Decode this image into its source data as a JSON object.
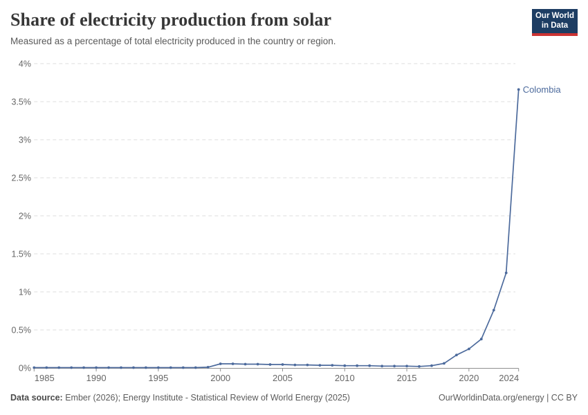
{
  "header": {
    "title": "Share of electricity production from solar",
    "subtitle": "Measured as a percentage of total electricity produced in the country or region."
  },
  "logo": {
    "line1": "Our World",
    "line2": "in Data"
  },
  "chart_data": {
    "type": "line",
    "title": "Share of electricity production from solar",
    "subtitle": "Measured as a percentage of total electricity produced in the country or region.",
    "entity_label": "Colombia",
    "xlim": [
      1985,
      2024
    ],
    "ylim": [
      0,
      4
    ],
    "x_ticks": [
      1985,
      1990,
      1995,
      2000,
      2005,
      2010,
      2015,
      2020,
      2024
    ],
    "y_ticks": [
      0,
      0.5,
      1,
      1.5,
      2,
      2.5,
      3,
      3.5,
      4
    ],
    "y_tick_labels": [
      "0%",
      "0.5%",
      "1%",
      "1.5%",
      "2%",
      "2.5%",
      "3%",
      "3.5%",
      "4%"
    ],
    "grid": "horizontal-dashed",
    "legend": "end-of-line-label",
    "series": [
      {
        "name": "Colombia",
        "x": [
          1985,
          1986,
          1987,
          1988,
          1989,
          1990,
          1991,
          1992,
          1993,
          1994,
          1995,
          1996,
          1997,
          1998,
          1999,
          2000,
          2001,
          2002,
          2003,
          2004,
          2005,
          2006,
          2007,
          2008,
          2009,
          2010,
          2011,
          2012,
          2013,
          2014,
          2015,
          2016,
          2017,
          2018,
          2019,
          2020,
          2021,
          2022,
          2023,
          2024
        ],
        "values": [
          0.005,
          0.005,
          0.005,
          0.005,
          0.005,
          0.005,
          0.005,
          0.005,
          0.005,
          0.005,
          0.005,
          0.005,
          0.005,
          0.005,
          0.01,
          0.055,
          0.055,
          0.05,
          0.05,
          0.045,
          0.045,
          0.04,
          0.04,
          0.035,
          0.035,
          0.03,
          0.03,
          0.03,
          0.025,
          0.025,
          0.025,
          0.02,
          0.03,
          0.06,
          0.17,
          0.25,
          0.38,
          0.76,
          1.25,
          3.66
        ]
      }
    ],
    "colors": {
      "line": "#4c6a9c",
      "grid": "#dcdcdc",
      "axis": "#8f8f8f",
      "tick_text": "#666666",
      "entity_label": "#4c6a9c"
    }
  },
  "footer": {
    "source_label": "Data source:",
    "source_text": " Ember (2026); Energy Institute - Statistical Review of World Energy (2025)",
    "credit": "OurWorldinData.org/energy | CC BY"
  }
}
